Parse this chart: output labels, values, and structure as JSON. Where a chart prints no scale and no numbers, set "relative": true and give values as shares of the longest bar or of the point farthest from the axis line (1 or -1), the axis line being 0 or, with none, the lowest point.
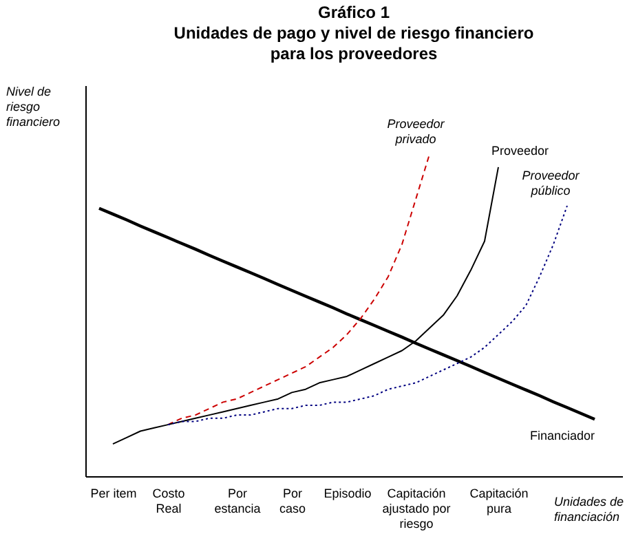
{
  "chart_data": {
    "type": "line",
    "title": "Gráfico 1\nUnidades de pago y nivel de riesgo financiero\npara los proveedores",
    "xlabel": "Unidades de\nfinanciación",
    "ylabel": "Nivel de\nriesgo\nfinanciero",
    "relative": true,
    "categories": [
      null,
      null,
      "Per item",
      null,
      null,
      null,
      "Costo\nReal",
      null,
      null,
      null,
      null,
      "Por\nestancia",
      null,
      null,
      null,
      "Por\ncaso",
      null,
      null,
      null,
      "Episodio",
      null,
      null,
      null,
      null,
      "Capitación\najustado por\nriesgo",
      null,
      null,
      null,
      null,
      null,
      "Capitación\npura",
      null,
      null,
      null,
      null,
      null,
      null,
      null,
      null,
      null
    ],
    "grid": false,
    "marker": "none",
    "series": [
      {
        "name": "Financiador",
        "color": "#000000",
        "line_style": "solid",
        "values": [
          null,
          0.832,
          0.814,
          0.796,
          0.777,
          0.759,
          0.741,
          0.723,
          0.705,
          0.686,
          0.668,
          0.65,
          0.632,
          0.614,
          0.595,
          0.577,
          0.559,
          0.541,
          0.523,
          0.504,
          0.486,
          0.468,
          0.45,
          0.432,
          0.413,
          0.395,
          0.377,
          0.359,
          0.341,
          0.322,
          0.304,
          0.286,
          0.268,
          0.25,
          0.231,
          0.213,
          0.195,
          0.177,
          null,
          null
        ]
      },
      {
        "name": "Proveedor\nprivado",
        "color": "#cc0000",
        "line_style": "dashed",
        "values": [
          null,
          null,
          null,
          null,
          null,
          null,
          0.16,
          0.18,
          0.19,
          0.21,
          0.23,
          0.24,
          0.26,
          0.28,
          0.3,
          0.32,
          0.34,
          0.37,
          0.4,
          0.44,
          0.49,
          0.55,
          0.62,
          0.72,
          0.86,
          1,
          null,
          null,
          null,
          null,
          null,
          null,
          null,
          null,
          null,
          null,
          null,
          null,
          null,
          null
        ]
      },
      {
        "name": "Proveedor",
        "color": "#000000",
        "line_style": "solid",
        "values": [
          null,
          null,
          0.1,
          0.12,
          0.14,
          0.15,
          0.16,
          0.17,
          0.18,
          0.19,
          0.2,
          0.21,
          0.22,
          0.23,
          0.24,
          0.26,
          0.27,
          0.29,
          0.3,
          0.31,
          0.33,
          0.35,
          0.37,
          0.39,
          0.42,
          0.46,
          0.5,
          0.56,
          0.64,
          0.73,
          0.96,
          null,
          null,
          null,
          null,
          null,
          null,
          null,
          null,
          null
        ]
      },
      {
        "name": "Proveedor\npúblico",
        "color": "#000080",
        "line_style": "dotted",
        "values": [
          null,
          null,
          null,
          null,
          null,
          null,
          0.16,
          0.17,
          0.17,
          0.18,
          0.18,
          0.19,
          0.19,
          0.2,
          0.21,
          0.21,
          0.22,
          0.22,
          0.23,
          0.23,
          0.24,
          0.25,
          0.27,
          0.28,
          0.29,
          0.31,
          0.33,
          0.35,
          0.37,
          0.4,
          0.44,
          0.48,
          0.53,
          0.62,
          0.72,
          0.84,
          null,
          null,
          null,
          null
        ]
      }
    ]
  }
}
